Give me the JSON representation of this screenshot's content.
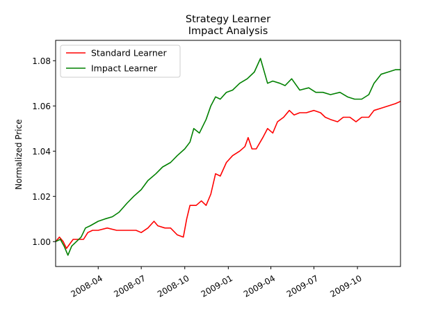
{
  "chart_data": {
    "type": "line",
    "title": "Strategy Learner",
    "subtitle": "Impact Analysis",
    "xlabel": "",
    "ylabel": "Normalized Price",
    "xlim": [
      "2008-01-02",
      "2009-12-31"
    ],
    "ylim": [
      0.989,
      1.089
    ],
    "x_ticks": [
      "2008-04",
      "2008-07",
      "2008-10",
      "2009-01",
      "2009-04",
      "2009-07",
      "2009-10"
    ],
    "y_ticks": [
      "1.00",
      "1.02",
      "1.04",
      "1.06",
      "1.08"
    ],
    "grid": false,
    "legend_position": "upper-left",
    "series": [
      {
        "name": "Standard Learner",
        "color": "#ff0000",
        "points": [
          [
            "2008-01-02",
            1.0
          ],
          [
            "2008-01-10",
            1.002
          ],
          [
            "2008-01-18",
            1.0
          ],
          [
            "2008-01-25",
            0.997
          ],
          [
            "2008-02-01",
            0.999
          ],
          [
            "2008-02-08",
            1.001
          ],
          [
            "2008-02-20",
            1.001
          ],
          [
            "2008-03-01",
            1.001
          ],
          [
            "2008-03-10",
            1.004
          ],
          [
            "2008-03-20",
            1.005
          ],
          [
            "2008-04-01",
            1.005
          ],
          [
            "2008-04-20",
            1.006
          ],
          [
            "2008-05-10",
            1.005
          ],
          [
            "2008-06-01",
            1.005
          ],
          [
            "2008-06-20",
            1.005
          ],
          [
            "2008-07-01",
            1.004
          ],
          [
            "2008-07-15",
            1.006
          ],
          [
            "2008-07-28",
            1.009
          ],
          [
            "2008-08-05",
            1.007
          ],
          [
            "2008-08-20",
            1.006
          ],
          [
            "2008-09-01",
            1.006
          ],
          [
            "2008-09-15",
            1.003
          ],
          [
            "2008-09-28",
            1.002
          ],
          [
            "2008-10-05",
            1.01
          ],
          [
            "2008-10-12",
            1.016
          ],
          [
            "2008-10-25",
            1.016
          ],
          [
            "2008-11-05",
            1.018
          ],
          [
            "2008-11-15",
            1.016
          ],
          [
            "2008-11-25",
            1.021
          ],
          [
            "2008-12-05",
            1.03
          ],
          [
            "2008-12-15",
            1.029
          ],
          [
            "2008-12-28",
            1.035
          ],
          [
            "2009-01-10",
            1.038
          ],
          [
            "2009-01-25",
            1.04
          ],
          [
            "2009-02-05",
            1.042
          ],
          [
            "2009-02-12",
            1.046
          ],
          [
            "2009-02-20",
            1.041
          ],
          [
            "2009-03-01",
            1.041
          ],
          [
            "2009-03-15",
            1.046
          ],
          [
            "2009-03-25",
            1.05
          ],
          [
            "2009-04-05",
            1.048
          ],
          [
            "2009-04-15",
            1.053
          ],
          [
            "2009-04-28",
            1.055
          ],
          [
            "2009-05-10",
            1.058
          ],
          [
            "2009-05-20",
            1.056
          ],
          [
            "2009-06-01",
            1.057
          ],
          [
            "2009-06-15",
            1.057
          ],
          [
            "2009-07-01",
            1.058
          ],
          [
            "2009-07-15",
            1.057
          ],
          [
            "2009-07-25",
            1.055
          ],
          [
            "2009-08-05",
            1.054
          ],
          [
            "2009-08-20",
            1.053
          ],
          [
            "2009-09-01",
            1.055
          ],
          [
            "2009-09-15",
            1.055
          ],
          [
            "2009-09-28",
            1.053
          ],
          [
            "2009-10-10",
            1.055
          ],
          [
            "2009-10-25",
            1.055
          ],
          [
            "2009-11-05",
            1.058
          ],
          [
            "2009-11-20",
            1.059
          ],
          [
            "2009-12-05",
            1.06
          ],
          [
            "2009-12-20",
            1.061
          ],
          [
            "2009-12-31",
            1.062
          ]
        ]
      },
      {
        "name": "Impact Learner",
        "color": "#008000",
        "points": [
          [
            "2008-01-02",
            1.0
          ],
          [
            "2008-01-12",
            1.001
          ],
          [
            "2008-01-20",
            0.998
          ],
          [
            "2008-01-28",
            0.994
          ],
          [
            "2008-02-05",
            0.998
          ],
          [
            "2008-02-15",
            1.0
          ],
          [
            "2008-02-25",
            1.002
          ],
          [
            "2008-03-05",
            1.006
          ],
          [
            "2008-03-15",
            1.007
          ],
          [
            "2008-04-01",
            1.009
          ],
          [
            "2008-04-15",
            1.01
          ],
          [
            "2008-05-01",
            1.011
          ],
          [
            "2008-05-15",
            1.013
          ],
          [
            "2008-06-01",
            1.017
          ],
          [
            "2008-06-15",
            1.02
          ],
          [
            "2008-07-01",
            1.023
          ],
          [
            "2008-07-15",
            1.027
          ],
          [
            "2008-08-01",
            1.03
          ],
          [
            "2008-08-15",
            1.033
          ],
          [
            "2008-09-01",
            1.035
          ],
          [
            "2008-09-15",
            1.038
          ],
          [
            "2008-10-01",
            1.041
          ],
          [
            "2008-10-12",
            1.044
          ],
          [
            "2008-10-20",
            1.05
          ],
          [
            "2008-11-01",
            1.048
          ],
          [
            "2008-11-15",
            1.054
          ],
          [
            "2008-11-25",
            1.06
          ],
          [
            "2008-12-05",
            1.064
          ],
          [
            "2008-12-15",
            1.063
          ],
          [
            "2008-12-28",
            1.066
          ],
          [
            "2009-01-10",
            1.067
          ],
          [
            "2009-01-25",
            1.07
          ],
          [
            "2009-02-10",
            1.072
          ],
          [
            "2009-02-25",
            1.075
          ],
          [
            "2009-03-10",
            1.081
          ],
          [
            "2009-03-25",
            1.07
          ],
          [
            "2009-04-05",
            1.071
          ],
          [
            "2009-04-20",
            1.07
          ],
          [
            "2009-05-01",
            1.069
          ],
          [
            "2009-05-15",
            1.072
          ],
          [
            "2009-06-01",
            1.067
          ],
          [
            "2009-06-20",
            1.068
          ],
          [
            "2009-07-05",
            1.066
          ],
          [
            "2009-07-20",
            1.066
          ],
          [
            "2009-08-05",
            1.065
          ],
          [
            "2009-08-25",
            1.066
          ],
          [
            "2009-09-10",
            1.064
          ],
          [
            "2009-09-25",
            1.063
          ],
          [
            "2009-10-10",
            1.063
          ],
          [
            "2009-10-25",
            1.065
          ],
          [
            "2009-11-05",
            1.07
          ],
          [
            "2009-11-20",
            1.074
          ],
          [
            "2009-12-05",
            1.075
          ],
          [
            "2009-12-20",
            1.076
          ],
          [
            "2009-12-31",
            1.076
          ]
        ]
      }
    ]
  }
}
